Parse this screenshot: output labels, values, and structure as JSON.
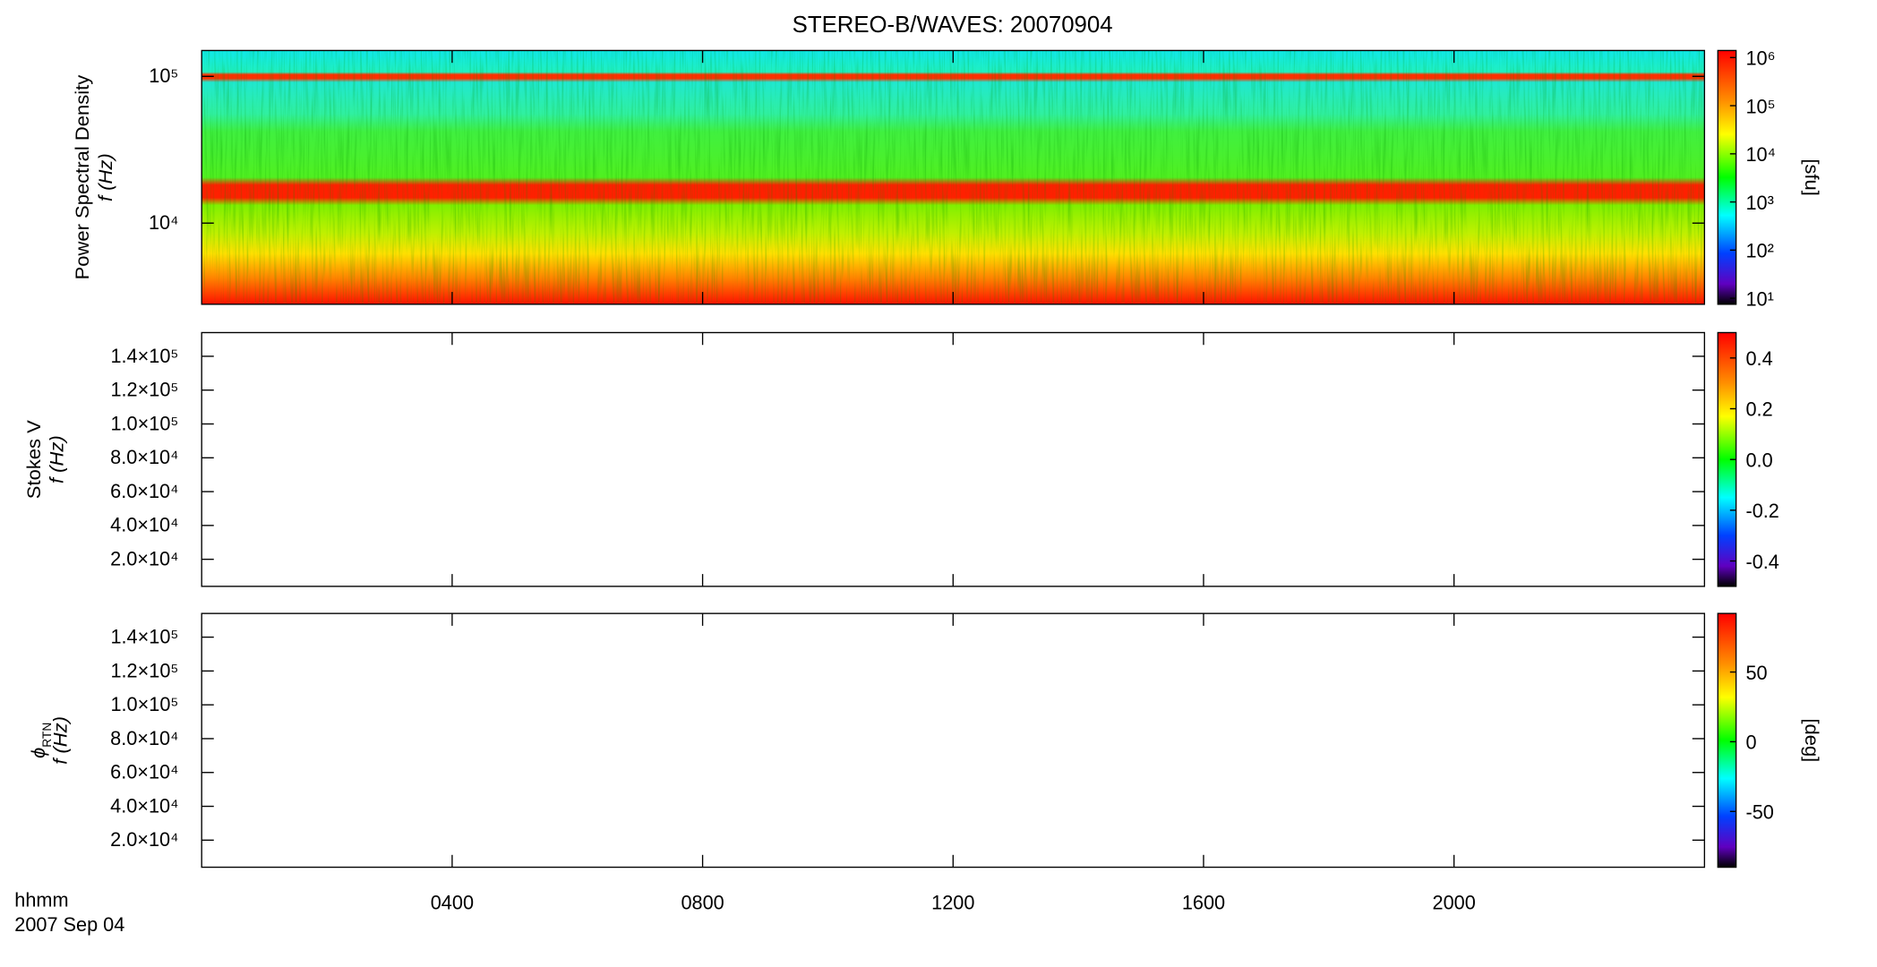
{
  "chart_data": [
    {
      "type": "spectrogram",
      "title": "STEREO-B/WAVES: 20070904",
      "ylabel": [
        "Power Spectral Density",
        "f (Hz)"
      ],
      "log_y": true,
      "ylim": [
        2800,
        150000
      ],
      "yticks": [
        {
          "value": 10000,
          "label": "10⁴"
        },
        {
          "value": 100000,
          "label": "10⁵"
        }
      ],
      "colorbar": {
        "log": true,
        "lim": [
          7.5,
          1400000
        ],
        "label": "[sfu]",
        "ticks": [
          {
            "value": 10,
            "label": "10¹"
          },
          {
            "value": 100,
            "label": "10²"
          },
          {
            "value": 1000,
            "label": "10³"
          },
          {
            "value": 10000,
            "label": "10⁴"
          },
          {
            "value": 100000,
            "label": "10⁵"
          },
          {
            "value": 1000000,
            "label": "10⁶"
          }
        ]
      }
    },
    {
      "type": "spectrogram",
      "ylabel": [
        "Stokes V",
        "f (Hz)"
      ],
      "log_y": false,
      "ylim": [
        4000,
        154000
      ],
      "yticks": [
        {
          "value": 20000,
          "label": "2.0×10⁴"
        },
        {
          "value": 40000,
          "label": "4.0×10⁴"
        },
        {
          "value": 60000,
          "label": "6.0×10⁴"
        },
        {
          "value": 80000,
          "label": "8.0×10⁴"
        },
        {
          "value": 100000,
          "label": "1.0×10⁵"
        },
        {
          "value": 120000,
          "label": "1.2×10⁵"
        },
        {
          "value": 140000,
          "label": "1.4×10⁵"
        }
      ],
      "colorbar": {
        "log": false,
        "lim": [
          -0.5,
          0.5
        ],
        "ticks": [
          -0.4,
          -0.2,
          {
            "value": 0,
            "label": "0.0"
          },
          0.2,
          0.4
        ]
      }
    },
    {
      "type": "spectrogram",
      "ylabel": [
        "ϕ",
        "RTN",
        "f (Hz)"
      ],
      "log_y": false,
      "ylim": [
        4000,
        154000
      ],
      "yticks": [
        {
          "value": 20000,
          "label": "2.0×10⁴"
        },
        {
          "value": 40000,
          "label": "4.0×10⁴"
        },
        {
          "value": 60000,
          "label": "6.0×10⁴"
        },
        {
          "value": 80000,
          "label": "8.0×10⁴"
        },
        {
          "value": 100000,
          "label": "1.0×10⁵"
        },
        {
          "value": 120000,
          "label": "1.2×10⁵"
        },
        {
          "value": 140000,
          "label": "1.4×10⁵"
        }
      ],
      "colorbar": {
        "log": false,
        "lim": [
          -90,
          92
        ],
        "label": "[deg]",
        "ticks": [
          -50,
          0,
          50
        ]
      },
      "xlabel": "hhmm",
      "date": "2007 Sep 04",
      "xlim": [
        0,
        24
      ],
      "xticks": [
        {
          "value": 4,
          "label": "0400"
        },
        {
          "value": 8,
          "label": "0800"
        },
        {
          "value": 12,
          "label": "1200"
        },
        {
          "value": 16,
          "label": "1600"
        },
        {
          "value": 20,
          "label": "2000"
        }
      ]
    }
  ]
}
